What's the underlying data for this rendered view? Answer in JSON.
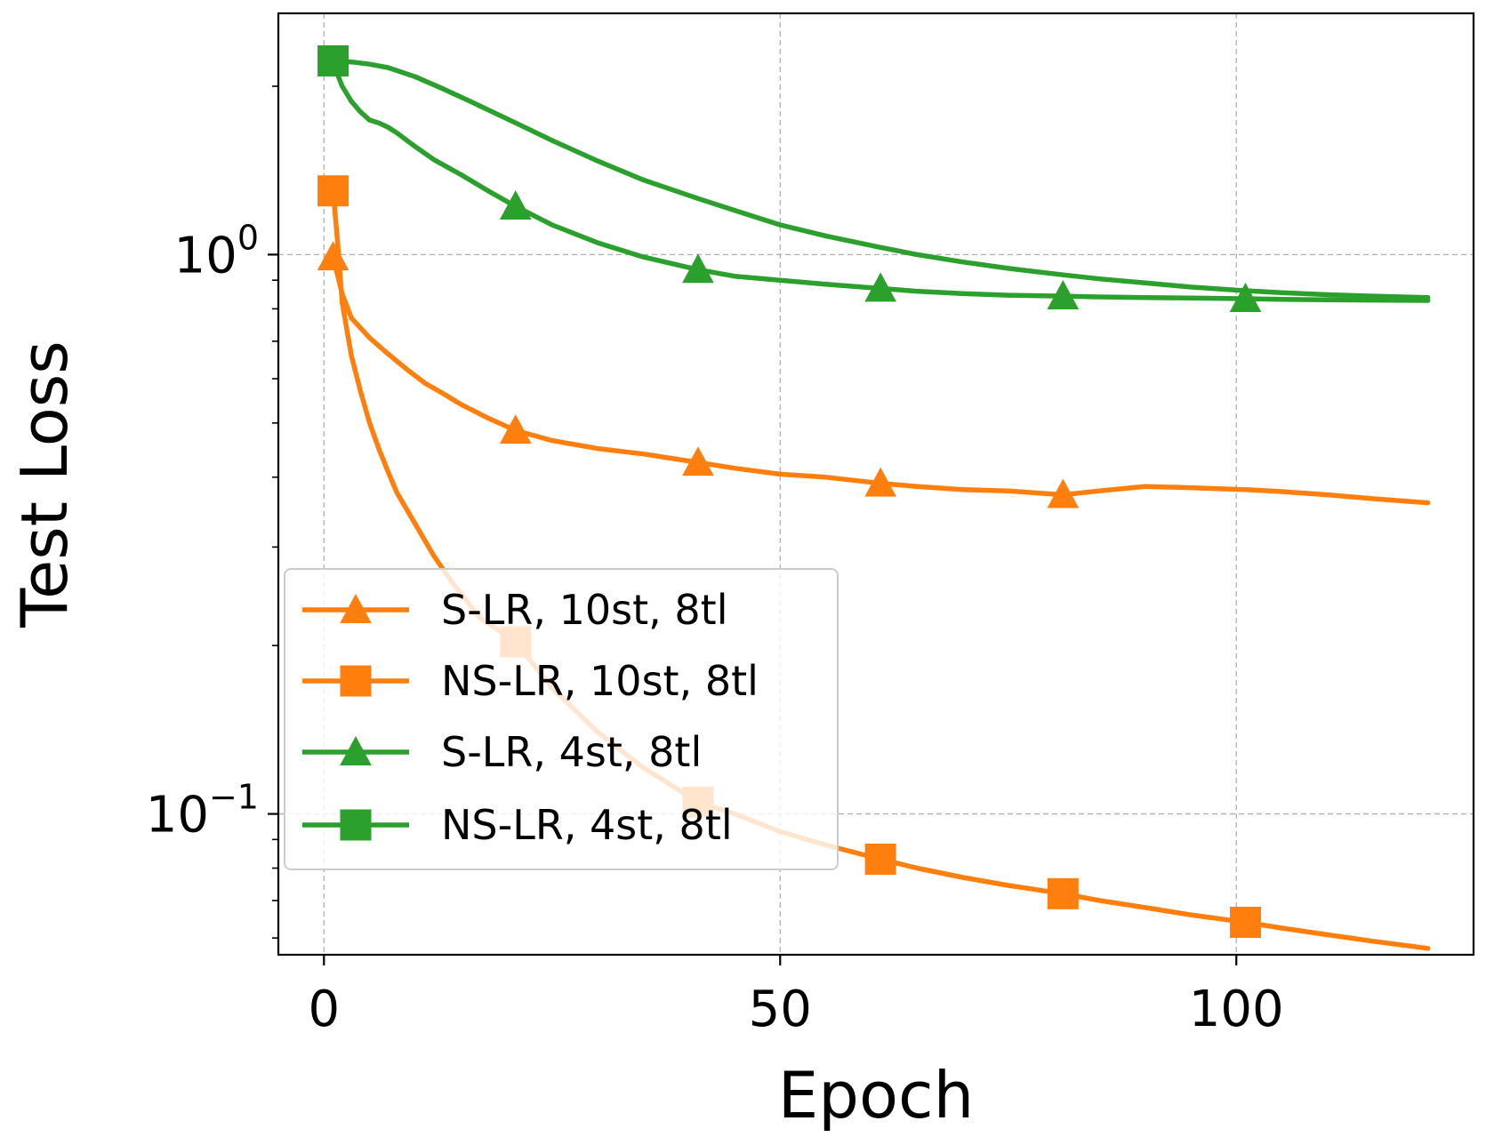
{
  "chart_data": {
    "type": "line",
    "xlabel": "Epoch",
    "ylabel": "Test Loss",
    "yscale": "log",
    "xlim": [
      -5,
      126
    ],
    "ylim": [
      0.056,
      2.7
    ],
    "grid": true,
    "legend_position": "lower-left",
    "x_ticks": [
      {
        "value": 0,
        "label": "0"
      },
      {
        "value": 50,
        "label": "50"
      },
      {
        "value": 100,
        "label": "100"
      }
    ],
    "y_ticks": [
      {
        "value": 1,
        "base": "10",
        "exp": "0"
      },
      {
        "value": 0.1,
        "base": "10",
        "exp": "−1"
      }
    ],
    "series": [
      {
        "name": "S-LR, 10st, 8tl",
        "color": "#ff7f0e",
        "marker": "triangle",
        "x": [
          1,
          2,
          3,
          5,
          7,
          9,
          11,
          13,
          15,
          18,
          21,
          25,
          30,
          35,
          41,
          45,
          50,
          55,
          61,
          65,
          70,
          75,
          81,
          85,
          90,
          95,
          101,
          105,
          110,
          115,
          121
        ],
        "y": [
          0.99,
          0.85,
          0.77,
          0.71,
          0.665,
          0.625,
          0.59,
          0.565,
          0.54,
          0.51,
          0.485,
          0.465,
          0.45,
          0.44,
          0.425,
          0.415,
          0.405,
          0.4,
          0.39,
          0.385,
          0.38,
          0.378,
          0.372,
          0.378,
          0.385,
          0.383,
          0.38,
          0.377,
          0.372,
          0.366,
          0.36
        ],
        "marker_x": [
          1,
          21,
          41,
          61,
          81
        ]
      },
      {
        "name": "NS-LR, 10st, 8tl",
        "color": "#ff7f0e",
        "marker": "square",
        "x": [
          1,
          1.5,
          2,
          3,
          4,
          5,
          6,
          7,
          8,
          10,
          12,
          14,
          17,
          21,
          25,
          30,
          35,
          41,
          45,
          50,
          55,
          61,
          65,
          70,
          75,
          81,
          85,
          90,
          95,
          101,
          105,
          110,
          115,
          121
        ],
        "y": [
          1.3,
          1.05,
          0.82,
          0.66,
          0.57,
          0.5,
          0.45,
          0.41,
          0.375,
          0.33,
          0.29,
          0.26,
          0.225,
          0.203,
          0.168,
          0.14,
          0.121,
          0.105,
          0.1,
          0.093,
          0.088,
          0.083,
          0.08,
          0.077,
          0.0745,
          0.072,
          0.07,
          0.068,
          0.066,
          0.064,
          0.0625,
          0.0608,
          0.0592,
          0.0575
        ],
        "marker_x": [
          1,
          21,
          41,
          61,
          81,
          101
        ]
      },
      {
        "name": "S-LR, 4st, 8tl",
        "color": "#2ca02c",
        "marker": "triangle",
        "x": [
          1,
          2,
          3,
          4,
          5,
          6,
          7,
          8,
          10,
          12,
          15,
          18,
          21,
          25,
          30,
          35,
          41,
          45,
          50,
          55,
          61,
          65,
          70,
          75,
          81,
          85,
          90,
          95,
          101,
          105,
          110,
          115,
          121
        ],
        "y": [
          2.2,
          2.0,
          1.88,
          1.8,
          1.74,
          1.72,
          1.69,
          1.65,
          1.56,
          1.48,
          1.39,
          1.3,
          1.22,
          1.13,
          1.05,
          0.99,
          0.94,
          0.915,
          0.9,
          0.885,
          0.87,
          0.86,
          0.852,
          0.846,
          0.843,
          0.84,
          0.838,
          0.836,
          0.834,
          0.832,
          0.83,
          0.829,
          0.828
        ],
        "marker_x": [
          1,
          21,
          41,
          61,
          81,
          101
        ]
      },
      {
        "name": "NS-LR, 4st, 8tl",
        "color": "#2ca02c",
        "marker": "square",
        "x": [
          1,
          3,
          5,
          7,
          10,
          13,
          16,
          21,
          25,
          30,
          35,
          41,
          45,
          50,
          55,
          61,
          65,
          70,
          75,
          81,
          85,
          90,
          95,
          101,
          105,
          110,
          115,
          121
        ],
        "y": [
          2.22,
          2.21,
          2.19,
          2.16,
          2.08,
          1.98,
          1.88,
          1.72,
          1.6,
          1.47,
          1.36,
          1.26,
          1.2,
          1.13,
          1.08,
          1.03,
          1.0,
          0.97,
          0.945,
          0.92,
          0.905,
          0.89,
          0.875,
          0.862,
          0.855,
          0.848,
          0.843,
          0.838
        ],
        "marker_x": [
          1
        ]
      }
    ]
  }
}
